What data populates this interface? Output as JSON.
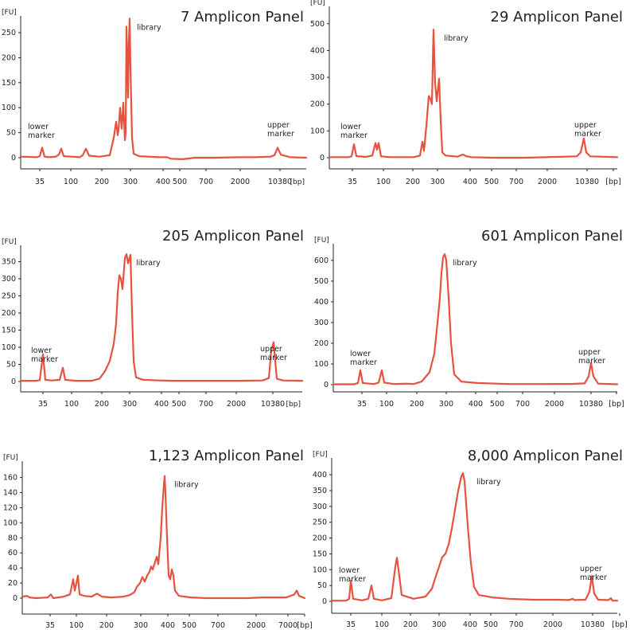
{
  "chart_data": [
    {
      "type": "line",
      "title": "7 Amplicon Panel",
      "yunit": "[FU]",
      "xunit": "[bp]",
      "yticks": [
        0,
        50,
        100,
        150,
        200,
        250
      ],
      "ylim": [
        -10,
        280
      ],
      "xticks": [
        "35",
        "100",
        "200",
        "300",
        "400",
        "500",
        "700",
        "2000",
        "10380"
      ],
      "annotations": [
        {
          "text": [
            "library"
          ],
          "at": "300"
        },
        {
          "text": [
            "lower",
            "marker"
          ],
          "at": "35"
        },
        {
          "text": [
            "upper",
            "marker"
          ],
          "at": "10380"
        }
      ],
      "peaks": [
        {
          "x": "35",
          "y": 20
        },
        {
          "x": "60",
          "y": 18
        },
        {
          "x": "150",
          "y": 18
        },
        {
          "x": "240",
          "y": 70
        },
        {
          "x": "250",
          "y": 100
        },
        {
          "x": "270",
          "y": 265
        },
        {
          "x": "285",
          "y": 275
        },
        {
          "x": "10380",
          "y": 20
        }
      ]
    },
    {
      "type": "line",
      "title": "29 Amplicon Panel",
      "yunit": "[FU]",
      "xunit": "[bp]",
      "yticks": [
        0,
        100,
        200,
        300,
        400,
        500
      ],
      "ylim": [
        -10,
        520
      ],
      "xticks": [
        "35",
        "100",
        "200",
        "300",
        "400",
        "500",
        "700",
        "2000",
        "10380",
        "[bp]"
      ],
      "annotations": [
        {
          "text": [
            "library"
          ],
          "at": "300"
        },
        {
          "text": [
            "lower",
            "marker"
          ],
          "at": "35"
        },
        {
          "text": [
            "upper",
            "marker"
          ],
          "at": "10380"
        }
      ],
      "peaks": [
        {
          "x": "35",
          "y": 50
        },
        {
          "x": "90",
          "y": 55
        },
        {
          "x": "240",
          "y": 230
        },
        {
          "x": "270",
          "y": 475
        },
        {
          "x": "290",
          "y": 295
        },
        {
          "x": "10380",
          "y": 70
        }
      ]
    },
    {
      "type": "line",
      "title": "205 Amplicon Panel",
      "yunit": "[FU]",
      "xunit": "[bp]",
      "yticks": [
        0,
        50,
        100,
        150,
        200,
        250,
        300,
        350
      ],
      "ylim": [
        -10,
        390
      ],
      "xticks": [
        "35",
        "100",
        "200",
        "300",
        "400",
        "500",
        "700",
        "2000",
        "10380"
      ],
      "annotations": [
        {
          "text": [
            "library"
          ],
          "at": "300"
        },
        {
          "text": [
            "lower",
            "marker"
          ],
          "at": "35"
        },
        {
          "text": [
            "upper",
            "marker"
          ],
          "at": "10380"
        }
      ],
      "peaks": [
        {
          "x": "35",
          "y": 80
        },
        {
          "x": "80",
          "y": 40
        },
        {
          "x": "260",
          "y": 310
        },
        {
          "x": "290",
          "y": 370
        },
        {
          "x": "10380",
          "y": 115
        }
      ]
    },
    {
      "type": "line",
      "title": "601 Amplicon Panel",
      "yunit": "[FU]",
      "xunit": "[bp]",
      "yticks": [
        0,
        100,
        200,
        300,
        400,
        500,
        600
      ],
      "ylim": [
        -10,
        660
      ],
      "xticks": [
        "35",
        "100",
        "200",
        "300",
        "400",
        "500",
        "700",
        "2000",
        "10380",
        "[bp]"
      ],
      "annotations": [
        {
          "text": [
            "library"
          ],
          "at": "300"
        },
        {
          "text": [
            "lower",
            "marker"
          ],
          "at": "35"
        },
        {
          "text": [
            "upper",
            "marker"
          ],
          "at": "10380"
        }
      ],
      "peaks": [
        {
          "x": "35",
          "y": 70
        },
        {
          "x": "90",
          "y": 70
        },
        {
          "x": "300",
          "y": 630
        },
        {
          "x": "10380",
          "y": 105
        }
      ]
    },
    {
      "type": "line",
      "title": "1,123 Amplicon Panel",
      "yunit": "[FU]",
      "xunit": "[bp]",
      "yticks": [
        0,
        20,
        40,
        60,
        80,
        100,
        120,
        140,
        160
      ],
      "ylim": [
        -5,
        168
      ],
      "xticks": [
        "35",
        "100",
        "200",
        "300",
        "400",
        "500",
        "700",
        "2000",
        "7000",
        "[bp]"
      ],
      "annotations": [
        {
          "text": [
            "library"
          ],
          "at": "400"
        }
      ],
      "peaks": [
        {
          "x": "35",
          "y": 5
        },
        {
          "x": "100",
          "y": 30
        },
        {
          "x": "320",
          "y": 40
        },
        {
          "x": "390",
          "y": 160
        },
        {
          "x": "430",
          "y": 35
        },
        {
          "x": "7000",
          "y": 10
        }
      ]
    },
    {
      "type": "line",
      "title": "8,000 Amplicon Panel",
      "yunit": "[FU]",
      "xunit": "[bp]",
      "yticks": [
        0,
        50,
        100,
        150,
        200,
        250,
        300,
        350,
        400
      ],
      "ylim": [
        -10,
        425
      ],
      "xticks": [
        "35",
        "100",
        "200",
        "300",
        "400",
        "500",
        "700",
        "2000",
        "10380",
        "[bp]"
      ],
      "annotations": [
        {
          "text": [
            "library"
          ],
          "at": "400"
        },
        {
          "text": [
            "lower",
            "marker"
          ],
          "at": "35"
        },
        {
          "text": [
            "upper",
            "marker"
          ],
          "at": "10380"
        }
      ],
      "peaks": [
        {
          "x": "35",
          "y": 60
        },
        {
          "x": "80",
          "y": 50
        },
        {
          "x": "150",
          "y": 140
        },
        {
          "x": "380",
          "y": 400
        },
        {
          "x": "10380",
          "y": 80
        }
      ]
    }
  ]
}
